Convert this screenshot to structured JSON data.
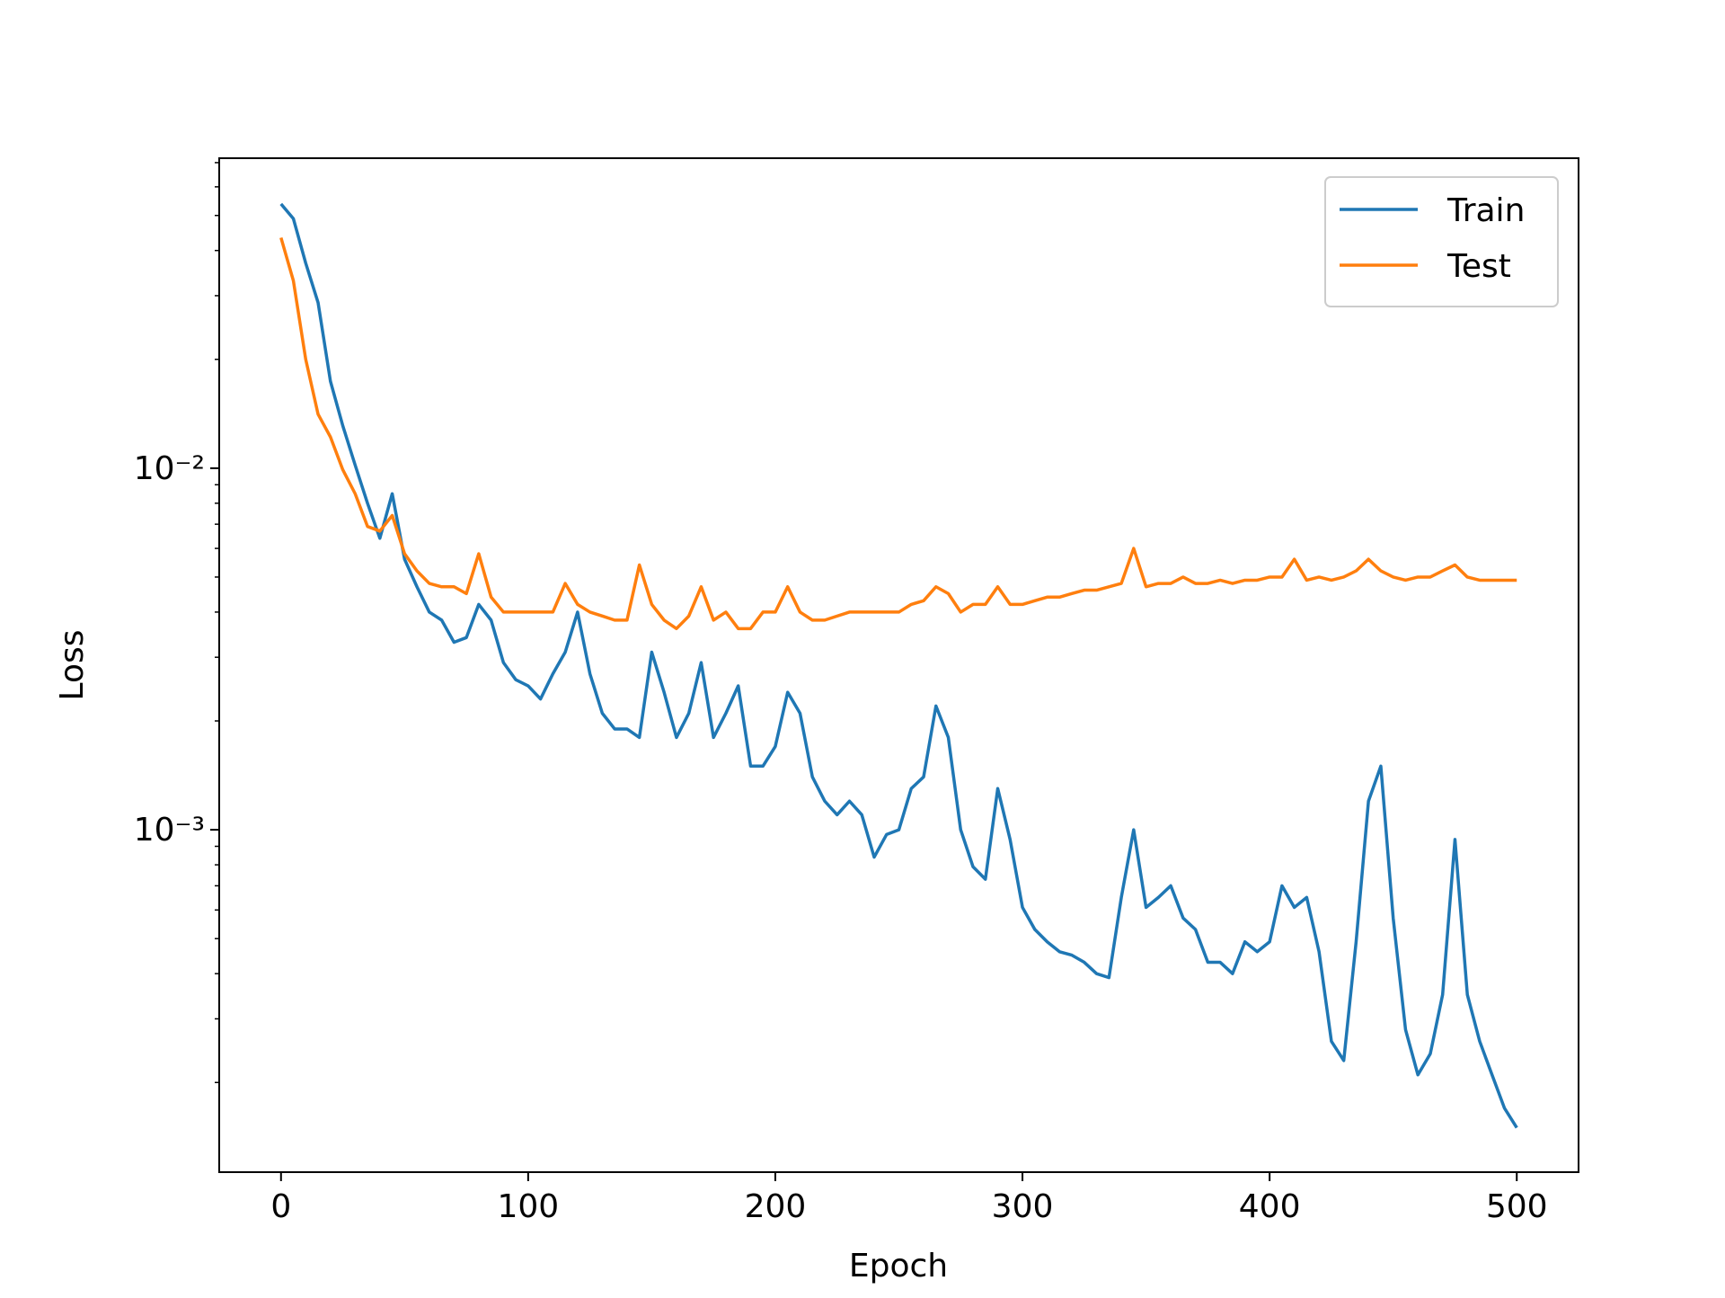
{
  "chart_data": {
    "type": "line",
    "xlabel": "Epoch",
    "ylabel": "Loss",
    "yscale": "log",
    "xlim": [
      -25,
      525
    ],
    "xticks": [
      0,
      100,
      200,
      300,
      400,
      500
    ],
    "ylim": [
      0.000113,
      0.072
    ],
    "yticks": [
      {
        "value": 0.001,
        "label": "10⁻³"
      },
      {
        "value": 0.01,
        "label": "10⁻²"
      }
    ],
    "yminorticks": [
      0.0002,
      0.0003,
      0.0004,
      0.0005,
      0.0006,
      0.0007,
      0.0008,
      0.0009,
      0.002,
      0.003,
      0.004,
      0.005,
      0.006,
      0.007,
      0.008,
      0.009,
      0.02,
      0.03,
      0.04,
      0.05,
      0.06,
      0.07
    ],
    "legend": "upper right",
    "x": [
      0,
      5,
      10,
      15,
      20,
      25,
      30,
      35,
      40,
      45,
      50,
      55,
      60,
      65,
      70,
      75,
      80,
      85,
      90,
      95,
      100,
      105,
      110,
      115,
      120,
      125,
      130,
      135,
      140,
      145,
      150,
      155,
      160,
      165,
      170,
      175,
      180,
      185,
      190,
      195,
      200,
      205,
      210,
      215,
      220,
      225,
      230,
      235,
      240,
      245,
      250,
      255,
      260,
      265,
      270,
      275,
      280,
      285,
      290,
      295,
      300,
      305,
      310,
      315,
      320,
      325,
      330,
      335,
      340,
      345,
      350,
      355,
      360,
      365,
      370,
      375,
      380,
      385,
      390,
      395,
      400,
      405,
      410,
      415,
      420,
      425,
      430,
      435,
      440,
      445,
      450,
      455,
      460,
      465,
      470,
      475,
      480,
      485,
      490,
      495,
      500
    ],
    "series": [
      {
        "name": "Train",
        "color": "#1f77b4",
        "values": [
          0.0538,
          0.049,
          0.0369,
          0.0287,
          0.0174,
          0.0131,
          0.0102,
          0.008,
          0.0064,
          0.0085,
          0.0056,
          0.0047,
          0.004,
          0.0038,
          0.0033,
          0.0034,
          0.0042,
          0.0038,
          0.0029,
          0.0026,
          0.0025,
          0.0023,
          0.0027,
          0.0031,
          0.004,
          0.0027,
          0.0021,
          0.0019,
          0.0019,
          0.0018,
          0.0031,
          0.0024,
          0.0018,
          0.0021,
          0.0029,
          0.0018,
          0.0021,
          0.0025,
          0.0015,
          0.0015,
          0.0017,
          0.0024,
          0.0021,
          0.0014,
          0.0012,
          0.0011,
          0.0012,
          0.0011,
          0.00084,
          0.00097,
          0.001,
          0.0013,
          0.0014,
          0.0022,
          0.0018,
          0.001,
          0.00079,
          0.00073,
          0.0013,
          0.00094,
          0.00061,
          0.00053,
          0.00049,
          0.00046,
          0.00045,
          0.00043,
          0.0004,
          0.00039,
          0.00065,
          0.001,
          0.00061,
          0.00065,
          0.0007,
          0.00057,
          0.00053,
          0.00043,
          0.00043,
          0.0004,
          0.00049,
          0.00046,
          0.00049,
          0.0007,
          0.00061,
          0.00065,
          0.00046,
          0.00026,
          0.00023,
          0.00049,
          0.0012,
          0.0015,
          0.00057,
          0.00028,
          0.00021,
          0.00024,
          0.00035,
          0.00094,
          0.00035,
          0.00026,
          0.00021,
          0.00017,
          0.00015
        ]
      },
      {
        "name": "Test",
        "color": "#ff7f0e",
        "values": [
          0.0434,
          0.033,
          0.02,
          0.0141,
          0.0122,
          0.0099,
          0.0085,
          0.0069,
          0.0067,
          0.0074,
          0.0058,
          0.0052,
          0.0048,
          0.0047,
          0.0047,
          0.0045,
          0.0058,
          0.0044,
          0.004,
          0.004,
          0.004,
          0.004,
          0.004,
          0.0048,
          0.0042,
          0.004,
          0.0039,
          0.0038,
          0.0038,
          0.0054,
          0.0042,
          0.0038,
          0.0036,
          0.0039,
          0.0047,
          0.0038,
          0.004,
          0.0036,
          0.0036,
          0.004,
          0.004,
          0.0047,
          0.004,
          0.0038,
          0.0038,
          0.0039,
          0.004,
          0.004,
          0.004,
          0.004,
          0.004,
          0.0042,
          0.0043,
          0.0047,
          0.0045,
          0.004,
          0.0042,
          0.0042,
          0.0047,
          0.0042,
          0.0042,
          0.0043,
          0.0044,
          0.0044,
          0.0045,
          0.0046,
          0.0046,
          0.0047,
          0.0048,
          0.006,
          0.0047,
          0.0048,
          0.0048,
          0.005,
          0.0048,
          0.0048,
          0.0049,
          0.0048,
          0.0049,
          0.0049,
          0.005,
          0.005,
          0.0056,
          0.0049,
          0.005,
          0.0049,
          0.005,
          0.0052,
          0.0056,
          0.0052,
          0.005,
          0.0049,
          0.005,
          0.005,
          0.0052,
          0.0054,
          0.005,
          0.0049,
          0.0049,
          0.0049,
          0.0049
        ]
      }
    ]
  }
}
